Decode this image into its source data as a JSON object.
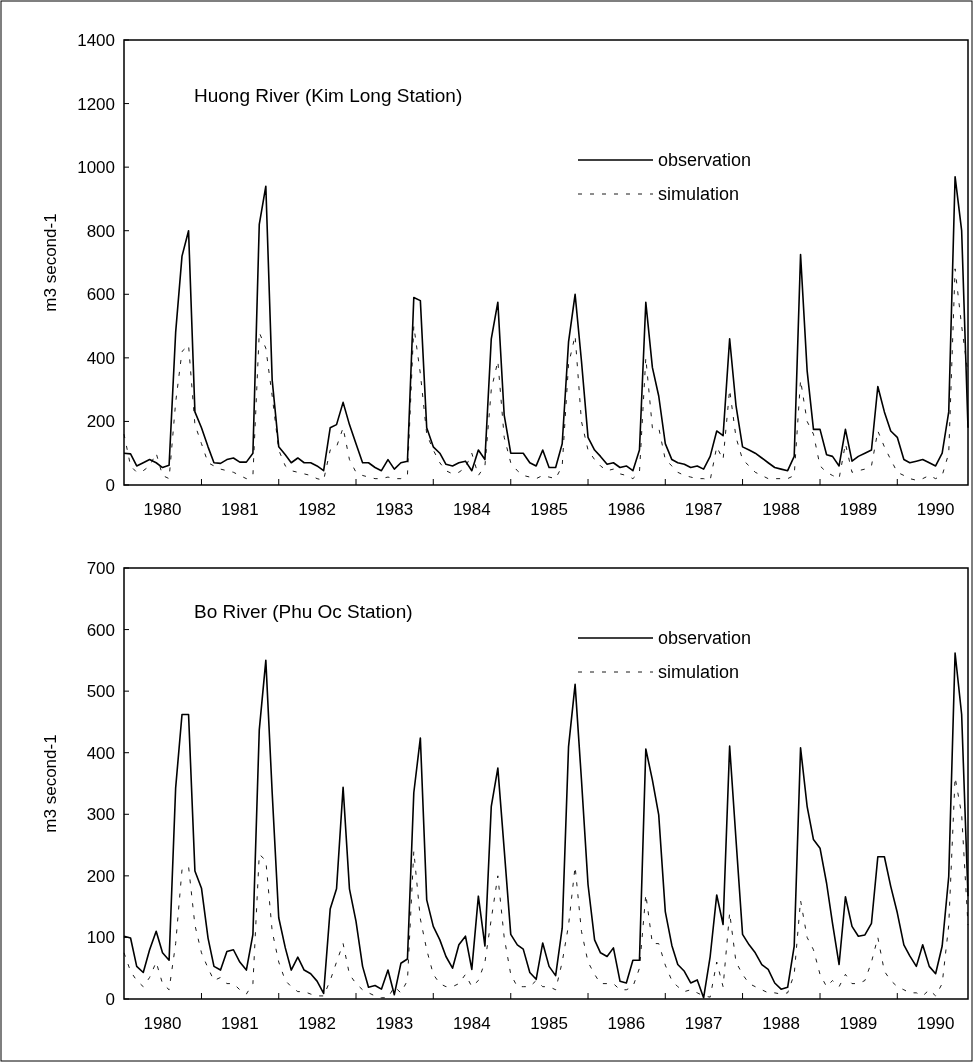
{
  "chart_data": [
    {
      "type": "line",
      "title": "Huong River (Kim Long Station)",
      "ylabel": "m3 second-1",
      "legend": "top right",
      "x": [
        "1980-01",
        "1980-02",
        "1980-03",
        "1980-04",
        "1980-05",
        "1980-06",
        "1980-07",
        "1980-08",
        "1980-09",
        "1980-10",
        "1980-11",
        "1980-12",
        "1981-01",
        "1981-02",
        "1981-03",
        "1981-04",
        "1981-05",
        "1981-06",
        "1981-07",
        "1981-08",
        "1981-09",
        "1981-10",
        "1981-11",
        "1981-12",
        "1982-01",
        "1982-02",
        "1982-03",
        "1982-04",
        "1982-05",
        "1982-06",
        "1982-07",
        "1982-08",
        "1982-09",
        "1982-10",
        "1982-11",
        "1982-12",
        "1983-01",
        "1983-02",
        "1983-03",
        "1983-04",
        "1983-05",
        "1983-06",
        "1983-07",
        "1983-08",
        "1983-09",
        "1983-10",
        "1983-11",
        "1983-12",
        "1984-01",
        "1984-02",
        "1984-03",
        "1984-04",
        "1984-05",
        "1984-06",
        "1984-07",
        "1984-08",
        "1984-09",
        "1984-10",
        "1984-11",
        "1984-12",
        "1985-01",
        "1985-02",
        "1985-03",
        "1985-04",
        "1985-05",
        "1985-06",
        "1985-07",
        "1985-08",
        "1985-09",
        "1985-10",
        "1985-11",
        "1985-12",
        "1986-01",
        "1986-02",
        "1986-03",
        "1986-04",
        "1986-05",
        "1986-06",
        "1986-07",
        "1986-08",
        "1986-09",
        "1986-10",
        "1986-11",
        "1986-12",
        "1987-01",
        "1987-02",
        "1987-03",
        "1987-04",
        "1987-05",
        "1987-06",
        "1987-07",
        "1987-08",
        "1987-09",
        "1987-10",
        "1987-11",
        "1987-12",
        "1988-01",
        "1988-02",
        "1988-03",
        "1988-04",
        "1988-05",
        "1988-06",
        "1988-07",
        "1988-08",
        "1988-09",
        "1988-10",
        "1988-11",
        "1988-12",
        "1989-01",
        "1989-02",
        "1989-03",
        "1989-04",
        "1989-05",
        "1989-06",
        "1989-07",
        "1989-08",
        "1989-09",
        "1989-10",
        "1989-11",
        "1989-12",
        "1990-01",
        "1990-02",
        "1990-03",
        "1990-04",
        "1990-05",
        "1990-06",
        "1990-07",
        "1990-08",
        "1990-09",
        "1990-10",
        "1990-11",
        "1990-12"
      ],
      "xlim": [
        "1980-01",
        "1990-12"
      ],
      "xticks": [
        {
          "value": "1980-07",
          "label": "1980"
        },
        {
          "value": "1981-01",
          "label": null
        },
        {
          "value": "1981-07",
          "label": "1981"
        },
        {
          "value": "1982-01",
          "label": null
        },
        {
          "value": "1982-07",
          "label": "1982"
        },
        {
          "value": "1983-01",
          "label": null
        },
        {
          "value": "1983-07",
          "label": "1983"
        },
        {
          "value": "1984-01",
          "label": null
        },
        {
          "value": "1984-07",
          "label": "1984"
        },
        {
          "value": "1985-01",
          "label": null
        },
        {
          "value": "1985-07",
          "label": "1985"
        },
        {
          "value": "1986-01",
          "label": null
        },
        {
          "value": "1986-07",
          "label": "1986"
        },
        {
          "value": "1987-01",
          "label": null
        },
        {
          "value": "1987-07",
          "label": "1987"
        },
        {
          "value": "1988-01",
          "label": null
        },
        {
          "value": "1988-07",
          "label": "1988"
        },
        {
          "value": "1989-01",
          "label": null
        },
        {
          "value": "1989-07",
          "label": "1989"
        },
        {
          "value": "1990-01",
          "label": null
        },
        {
          "value": "1990-07",
          "label": "1990"
        }
      ],
      "ylim": [
        0,
        1400
      ],
      "yticks": [
        0,
        200,
        400,
        600,
        800,
        1000,
        1200,
        1400
      ],
      "series": [
        {
          "name": "observation",
          "color": "#000000",
          "line_style": "solid",
          "values": [
            100,
            98,
            60,
            70,
            80,
            70,
            55,
            62,
            480,
            720,
            800,
            230,
            180,
            120,
            70,
            68,
            80,
            85,
            72,
            72,
            100,
            820,
            940,
            330,
            120,
            95,
            70,
            85,
            70,
            70,
            60,
            45,
            180,
            190,
            260,
            190,
            130,
            70,
            70,
            55,
            45,
            80,
            50,
            70,
            75,
            590,
            580,
            180,
            120,
            100,
            65,
            60,
            70,
            75,
            45,
            110,
            80,
            460,
            575,
            220,
            100,
            100,
            100,
            70,
            60,
            110,
            55,
            55,
            130,
            450,
            600,
            390,
            150,
            110,
            90,
            65,
            70,
            55,
            60,
            45,
            110,
            575,
            370,
            280,
            130,
            80,
            70,
            65,
            55,
            60,
            50,
            90,
            170,
            155,
            460,
            250,
            120,
            110,
            100,
            85,
            70,
            55,
            50,
            45,
            90,
            725,
            360,
            175,
            175,
            95,
            90,
            60,
            175,
            75,
            90,
            100,
            110,
            310,
            230,
            170,
            150,
            80,
            70,
            75,
            80,
            70,
            60,
            100,
            230,
            970,
            800,
            180
          ]
        },
        {
          "name": "simulation",
          "color": "#000000",
          "line_style": "dashed",
          "values": [
            160,
            60,
            40,
            45,
            60,
            100,
            30,
            20,
            260,
            420,
            440,
            190,
            130,
            70,
            60,
            50,
            45,
            40,
            30,
            20,
            30,
            480,
            430,
            280,
            110,
            60,
            45,
            40,
            35,
            30,
            20,
            15,
            110,
            120,
            180,
            80,
            40,
            30,
            25,
            20,
            20,
            25,
            20,
            20,
            30,
            500,
            350,
            160,
            110,
            70,
            45,
            35,
            40,
            55,
            100,
            30,
            60,
            300,
            390,
            150,
            70,
            45,
            30,
            25,
            20,
            30,
            25,
            20,
            60,
            380,
            470,
            200,
            110,
            80,
            60,
            45,
            50,
            35,
            30,
            20,
            40,
            400,
            180,
            180,
            80,
            60,
            40,
            30,
            25,
            20,
            20,
            15,
            120,
            80,
            300,
            150,
            80,
            60,
            40,
            30,
            20,
            20,
            20,
            20,
            30,
            330,
            200,
            160,
            60,
            40,
            30,
            20,
            130,
            40,
            45,
            50,
            60,
            170,
            120,
            80,
            40,
            30,
            20,
            15,
            20,
            30,
            20,
            30,
            100,
            680,
            500,
            350
          ]
        }
      ]
    },
    {
      "type": "line",
      "title": "Bo River (Phu Oc Station)",
      "ylabel": "m3 second-1",
      "legend": "top right",
      "x": [
        "1980-01",
        "1980-02",
        "1980-03",
        "1980-04",
        "1980-05",
        "1980-06",
        "1980-07",
        "1980-08",
        "1980-09",
        "1980-10",
        "1980-11",
        "1980-12",
        "1981-01",
        "1981-02",
        "1981-03",
        "1981-04",
        "1981-05",
        "1981-06",
        "1981-07",
        "1981-08",
        "1981-09",
        "1981-10",
        "1981-11",
        "1981-12",
        "1982-01",
        "1982-02",
        "1982-03",
        "1982-04",
        "1982-05",
        "1982-06",
        "1982-07",
        "1982-08",
        "1982-09",
        "1982-10",
        "1982-11",
        "1982-12",
        "1983-01",
        "1983-02",
        "1983-03",
        "1983-04",
        "1983-05",
        "1983-06",
        "1983-07",
        "1983-08",
        "1983-09",
        "1983-10",
        "1983-11",
        "1983-12",
        "1984-01",
        "1984-02",
        "1984-03",
        "1984-04",
        "1984-05",
        "1984-06",
        "1984-07",
        "1984-08",
        "1984-09",
        "1984-10",
        "1984-11",
        "1984-12",
        "1985-01",
        "1985-02",
        "1985-03",
        "1985-04",
        "1985-05",
        "1985-06",
        "1985-07",
        "1985-08",
        "1985-09",
        "1985-10",
        "1985-11",
        "1985-12",
        "1986-01",
        "1986-02",
        "1986-03",
        "1986-04",
        "1986-05",
        "1986-06",
        "1986-07",
        "1986-08",
        "1986-09",
        "1986-10",
        "1986-11",
        "1986-12",
        "1987-01",
        "1987-02",
        "1987-03",
        "1987-04",
        "1987-05",
        "1987-06",
        "1987-07",
        "1987-08",
        "1987-09",
        "1987-10",
        "1987-11",
        "1987-12",
        "1988-01",
        "1988-02",
        "1988-03",
        "1988-04",
        "1988-05",
        "1988-06",
        "1988-07",
        "1988-08",
        "1988-09",
        "1988-10",
        "1988-11",
        "1988-12",
        "1989-01",
        "1989-02",
        "1989-03",
        "1989-04",
        "1989-05",
        "1989-06",
        "1989-07",
        "1989-08",
        "1989-09",
        "1989-10",
        "1989-11",
        "1989-12",
        "1990-01",
        "1990-02",
        "1990-03",
        "1990-04",
        "1990-05",
        "1990-06",
        "1990-07",
        "1990-08",
        "1990-09",
        "1990-10",
        "1990-11",
        "1990-12"
      ],
      "xlim": [
        "1980-01",
        "1990-12"
      ],
      "xticks": [
        {
          "value": "1980-07",
          "label": "1980"
        },
        {
          "value": "1981-01",
          "label": null
        },
        {
          "value": "1981-07",
          "label": "1981"
        },
        {
          "value": "1982-01",
          "label": null
        },
        {
          "value": "1982-07",
          "label": "1982"
        },
        {
          "value": "1983-01",
          "label": null
        },
        {
          "value": "1983-07",
          "label": "1983"
        },
        {
          "value": "1984-01",
          "label": null
        },
        {
          "value": "1984-07",
          "label": "1984"
        },
        {
          "value": "1985-01",
          "label": null
        },
        {
          "value": "1985-07",
          "label": "1985"
        },
        {
          "value": "1986-01",
          "label": null
        },
        {
          "value": "1986-07",
          "label": "1986"
        },
        {
          "value": "1987-01",
          "label": null
        },
        {
          "value": "1987-07",
          "label": "1987"
        },
        {
          "value": "1988-01",
          "label": null
        },
        {
          "value": "1988-07",
          "label": "1988"
        },
        {
          "value": "1989-01",
          "label": null
        },
        {
          "value": "1989-07",
          "label": "1989"
        },
        {
          "value": "1990-01",
          "label": null
        },
        {
          "value": "1990-07",
          "label": "1990"
        }
      ],
      "ylim": [
        0,
        700
      ],
      "yticks": [
        0,
        100,
        200,
        300,
        400,
        500,
        600,
        700
      ],
      "series": [
        {
          "name": "observation",
          "color": "#000000",
          "line_style": "solid",
          "values": [
            102,
            99,
            53,
            43,
            80,
            110,
            75,
            63,
            343,
            462,
            462,
            208,
            180,
            99,
            53,
            47,
            77,
            80,
            60,
            47,
            105,
            437,
            550,
            335,
            132,
            83,
            47,
            68,
            47,
            41,
            29,
            9,
            146,
            179,
            344,
            179,
            126,
            53,
            19,
            22,
            16,
            47,
            7,
            58,
            65,
            335,
            424,
            161,
            118,
            96,
            69,
            50,
            88,
            102,
            48,
            167,
            86,
            313,
            375,
            243,
            105,
            88,
            81,
            43,
            32,
            91,
            53,
            38,
            115,
            410,
            511,
            356,
            186,
            96,
            75,
            69,
            83,
            29,
            26,
            63,
            63,
            406,
            356,
            299,
            142,
            87,
            56,
            45,
            26,
            31,
            2,
            69,
            169,
            121,
            411,
            259,
            105,
            88,
            75,
            56,
            48,
            26,
            16,
            19,
            86,
            408,
            313,
            259,
            245,
            188,
            123,
            56,
            166,
            118,
            102,
            104,
            123,
            231,
            231,
            183,
            140,
            88,
            70,
            53,
            88,
            53,
            41,
            86,
            199,
            562,
            462,
            167
          ]
        },
        {
          "name": "simulation",
          "color": "#000000",
          "line_style": "dashed",
          "values": [
            75,
            45,
            30,
            20,
            35,
            60,
            25,
            15,
            90,
            210,
            215,
            120,
            75,
            50,
            30,
            35,
            25,
            25,
            15,
            8,
            25,
            235,
            225,
            110,
            60,
            30,
            20,
            12,
            12,
            8,
            5,
            5,
            30,
            60,
            90,
            40,
            25,
            15,
            10,
            5,
            2,
            2,
            20,
            10,
            30,
            240,
            130,
            80,
            40,
            25,
            20,
            20,
            25,
            40,
            20,
            30,
            60,
            130,
            200,
            100,
            40,
            20,
            20,
            20,
            30,
            20,
            20,
            15,
            60,
            120,
            215,
            110,
            60,
            40,
            25,
            25,
            25,
            15,
            15,
            20,
            50,
            170,
            90,
            90,
            55,
            30,
            20,
            12,
            15,
            10,
            5,
            3,
            60,
            20,
            140,
            60,
            40,
            25,
            20,
            15,
            10,
            10,
            8,
            10,
            40,
            160,
            100,
            80,
            40,
            20,
            30,
            20,
            40,
            25,
            25,
            30,
            60,
            100,
            45,
            30,
            20,
            15,
            10,
            10,
            5,
            15,
            5,
            25,
            120,
            360,
            300,
            120
          ]
        }
      ]
    }
  ]
}
